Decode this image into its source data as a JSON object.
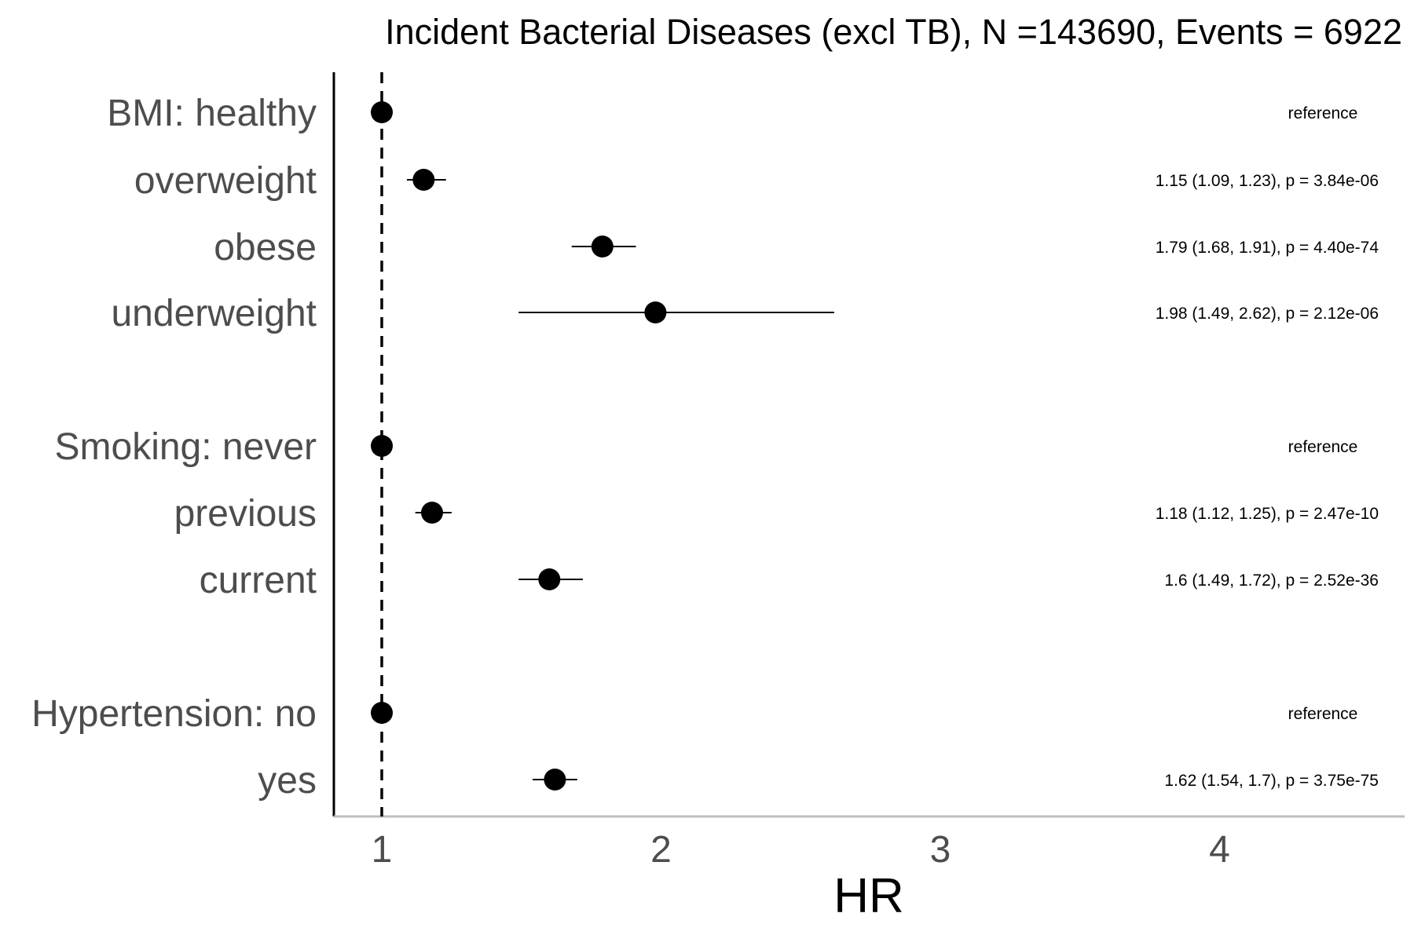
{
  "chart_data": {
    "type": "scatter",
    "subtype": "forest_plot",
    "title": "Incident Bacterial Diseases (excl TB), N =143690, Events = 6922",
    "xlabel": "HR",
    "ylabel": "",
    "xlim": [
      0.83,
      4.65
    ],
    "x_ticks": [
      1,
      2,
      3,
      4
    ],
    "x_tick_labels": [
      "1",
      "2",
      "3",
      "4"
    ],
    "reference_line_x": 1,
    "grid": false,
    "legend": "none",
    "colors": {
      "point": "#000000",
      "category_text": "#4d4d4d",
      "x_axis_line": "#bebebe",
      "y_axis_line": "#000000"
    },
    "rows": [
      {
        "label": "BMI: healthy",
        "hr": 1.0,
        "lower": 1.0,
        "upper": 1.0,
        "annotation": "reference"
      },
      {
        "label": "overweight",
        "hr": 1.15,
        "lower": 1.09,
        "upper": 1.23,
        "annotation": "1.15 (1.09, 1.23), p = 3.84e-06"
      },
      {
        "label": "obese",
        "hr": 1.79,
        "lower": 1.68,
        "upper": 1.91,
        "annotation": "1.79 (1.68, 1.91), p = 4.40e-74"
      },
      {
        "label": "underweight",
        "hr": 1.98,
        "lower": 1.49,
        "upper": 2.62,
        "annotation": "1.98 (1.49, 2.62), p = 2.12e-06"
      },
      {
        "label": "Smoking: never",
        "hr": 1.0,
        "lower": 1.0,
        "upper": 1.0,
        "annotation": "reference"
      },
      {
        "label": "previous",
        "hr": 1.18,
        "lower": 1.12,
        "upper": 1.25,
        "annotation": "1.18 (1.12, 1.25), p = 2.47e-10"
      },
      {
        "label": "current",
        "hr": 1.6,
        "lower": 1.49,
        "upper": 1.72,
        "annotation": "1.6 (1.49, 1.72), p = 2.52e-36"
      },
      {
        "label": "Hypertension: no",
        "hr": 1.0,
        "lower": 1.0,
        "upper": 1.0,
        "annotation": "reference"
      },
      {
        "label": "yes",
        "hr": 1.62,
        "lower": 1.54,
        "upper": 1.7,
        "annotation": "1.62 (1.54, 1.7), p = 3.75e-75"
      }
    ]
  }
}
